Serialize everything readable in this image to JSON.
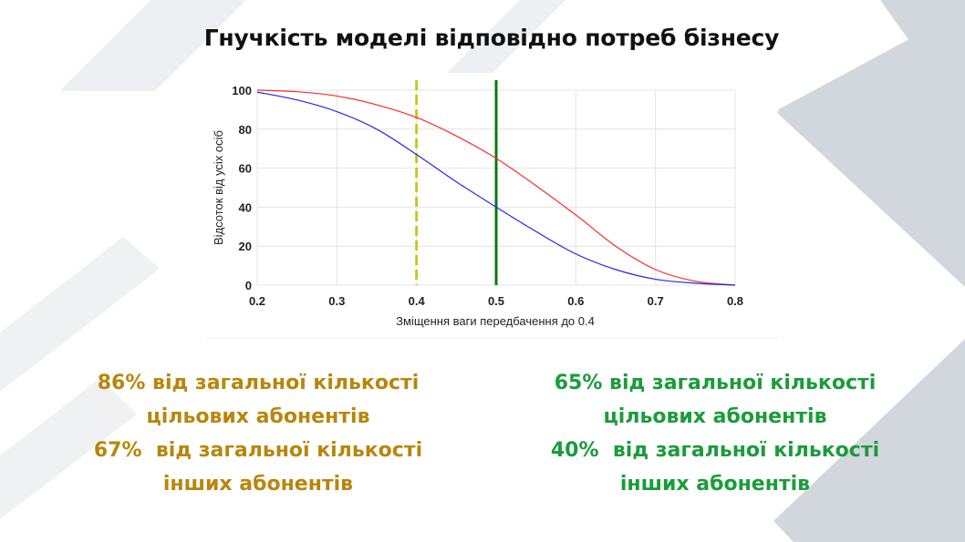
{
  "slide": {
    "title": "Гнучкість моделі відповідно потреб бізнесу"
  },
  "colors": {
    "deco_gray": "#d2d6dd",
    "left_caption": "#b8860b",
    "right_caption": "#1a9c3a",
    "red_curve": "#ff2a2a",
    "blue_curve": "#2525ee",
    "yellow_line": "#c8c820",
    "green_line": "#0a7a0a"
  },
  "chart_data": {
    "type": "line",
    "title": "",
    "xlabel": "Зміщення ваги передбачення до 0.4",
    "ylabel": "Відсоток від усіх осіб",
    "xlim": [
      0.2,
      0.8
    ],
    "ylim": [
      0,
      100
    ],
    "xticks": [
      0.2,
      0.3,
      0.4,
      0.5,
      0.6,
      0.7,
      0.8
    ],
    "xtick_labels": [
      "0.2",
      "0.3",
      "0.4",
      "0.5",
      "0.6",
      "0.7",
      "0.8"
    ],
    "yticks": [
      0,
      20,
      40,
      60,
      80,
      100
    ],
    "ytick_labels": [
      "0",
      "20",
      "40",
      "60",
      "80",
      "100"
    ],
    "grid": true,
    "x": [
      0.2,
      0.25,
      0.3,
      0.35,
      0.4,
      0.45,
      0.5,
      0.55,
      0.6,
      0.65,
      0.7,
      0.75,
      0.8
    ],
    "series": [
      {
        "color": "#ff2a2a",
        "values": [
          100,
          99.2,
          97,
          92.5,
          86,
          76.5,
          65,
          51,
          36,
          20,
          8,
          2,
          0
        ]
      },
      {
        "color": "#2525ee",
        "values": [
          99,
          95,
          89,
          80,
          67,
          53,
          40,
          27.5,
          16,
          8,
          3,
          1,
          0
        ]
      }
    ],
    "vlines": [
      {
        "x": 0.4,
        "color": "#c8c820",
        "style": "dashed"
      },
      {
        "x": 0.5,
        "color": "#0a7a0a",
        "style": "solid"
      }
    ]
  },
  "captions": {
    "left": [
      "86% від загальної кількості",
      "цільових абонентів",
      "67%  від загальної кількості",
      "інших абонентів"
    ],
    "right": [
      "65% від загальної кількості",
      "цільових абонентів",
      "40%  від загальної кількості",
      "інших абонентів"
    ]
  }
}
